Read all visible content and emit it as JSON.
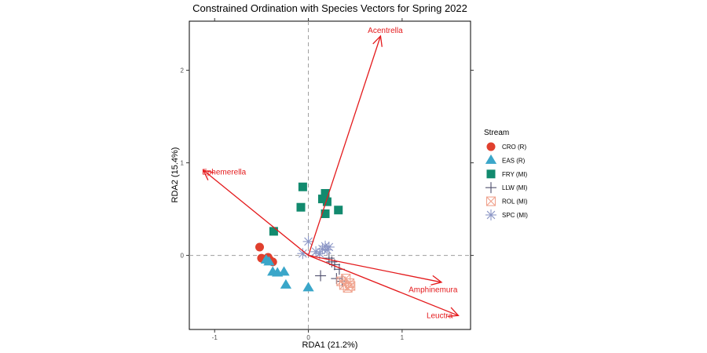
{
  "chart_data": {
    "type": "scatter",
    "title": "Constrained Ordination with Species Vectors for Spring 2022",
    "xlabel": "RDA1 (21.2%)",
    "ylabel": "RDA2 (15.4%)",
    "xlim": [
      -1.27,
      1.73
    ],
    "ylim": [
      -0.8,
      2.53
    ],
    "x_ticks": [
      {
        "value": -1,
        "label": "-1"
      },
      {
        "value": 0,
        "label": "0"
      },
      {
        "value": 1,
        "label": "1"
      }
    ],
    "y_ticks": [
      {
        "value": 0,
        "label": "0"
      },
      {
        "value": 1,
        "label": "1"
      },
      {
        "value": 2,
        "label": "2"
      }
    ],
    "grid": false,
    "reference_lines": {
      "x": 0,
      "y": 0,
      "style": "dashed"
    },
    "legend": {
      "title": "Stream",
      "position": "right"
    },
    "series": [
      {
        "name": "CRO (R)",
        "shape": "circle",
        "color": "#e0402e",
        "points": [
          [
            -0.52,
            0.09
          ],
          [
            -0.5,
            -0.03
          ],
          [
            -0.43,
            -0.02
          ],
          [
            -0.41,
            -0.05
          ],
          [
            -0.38,
            -0.07
          ]
        ]
      },
      {
        "name": "EAS (R)",
        "shape": "triangle",
        "color": "#3aa6c9",
        "points": [
          [
            -0.45,
            -0.05
          ],
          [
            -0.42,
            -0.07
          ],
          [
            -0.38,
            -0.18
          ],
          [
            -0.33,
            -0.19
          ],
          [
            -0.26,
            -0.18
          ],
          [
            -0.24,
            -0.32
          ],
          [
            0.0,
            -0.35
          ]
        ]
      },
      {
        "name": "FRY (MI)",
        "shape": "square",
        "color": "#128a6e",
        "points": [
          [
            -0.37,
            0.26
          ],
          [
            -0.08,
            0.52
          ],
          [
            -0.06,
            0.74
          ],
          [
            0.15,
            0.61
          ],
          [
            0.18,
            0.67
          ],
          [
            0.2,
            0.58
          ],
          [
            0.18,
            0.45
          ],
          [
            0.32,
            0.49
          ]
        ]
      },
      {
        "name": "LLW (MI)",
        "shape": "plus",
        "color": "#4d4d6b",
        "points": [
          [
            0.13,
            -0.22
          ],
          [
            0.22,
            -0.03
          ],
          [
            0.25,
            -0.07
          ],
          [
            0.28,
            -0.1
          ],
          [
            0.3,
            -0.25
          ],
          [
            0.33,
            -0.15
          ],
          [
            0.36,
            -0.28
          ]
        ]
      },
      {
        "name": "ROL (MI)",
        "shape": "boxcross",
        "color": "#f0a38e",
        "points": [
          [
            0.35,
            -0.28
          ],
          [
            0.38,
            -0.32
          ],
          [
            0.4,
            -0.25
          ],
          [
            0.42,
            -0.35
          ],
          [
            0.44,
            -0.3
          ],
          [
            0.45,
            -0.33
          ]
        ]
      },
      {
        "name": "SPC (MI)",
        "shape": "asterisk",
        "color": "#8c97c6",
        "points": [
          [
            -0.06,
            0.02
          ],
          [
            0.0,
            0.15
          ],
          [
            0.08,
            0.04
          ],
          [
            0.12,
            0.02
          ],
          [
            0.15,
            0.07
          ],
          [
            0.18,
            0.1
          ],
          [
            0.2,
            0.06
          ],
          [
            0.22,
            0.09
          ]
        ]
      }
    ],
    "vectors": [
      {
        "name": "Acentrella",
        "x": 0.77,
        "y": 2.37,
        "label_x": 0.82,
        "label_y": 2.43
      },
      {
        "name": "Ephemerella",
        "x": -1.12,
        "y": 0.92,
        "label_x": -0.9,
        "label_y": 0.9
      },
      {
        "name": "Amphinemura",
        "x": 1.42,
        "y": -0.29,
        "label_x": 1.33,
        "label_y": -0.37
      },
      {
        "name": "Leuctra",
        "x": 1.6,
        "y": -0.65,
        "label_x": 1.4,
        "label_y": -0.65
      }
    ],
    "vector_color": "#e41a1c"
  }
}
